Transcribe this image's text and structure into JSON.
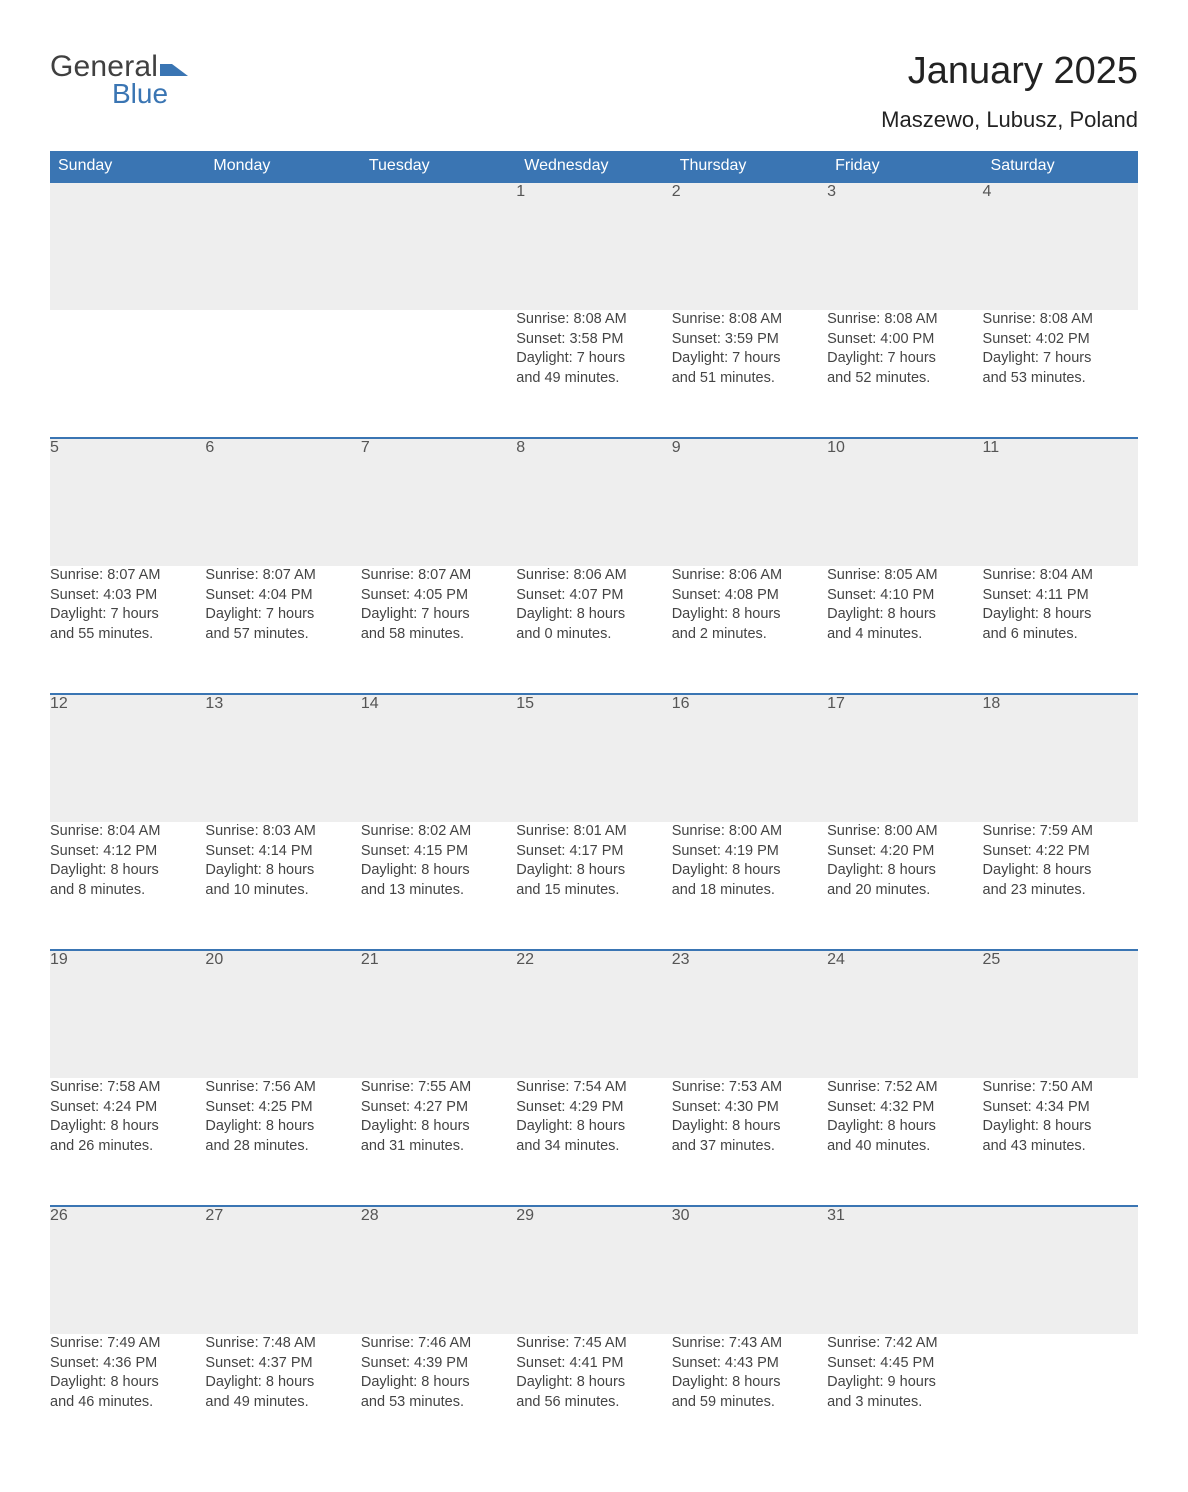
{
  "brand": {
    "part1": "General",
    "part2": "Blue",
    "mark_color": "#3a75b3"
  },
  "title": "January 2025",
  "location": "Maszewo, Lubusz, Poland",
  "colors": {
    "header_bg": "#3a75b3",
    "header_fg": "#ffffff",
    "daynum_bg": "#eeeeee",
    "row_border": "#3a75b3",
    "text": "#444444",
    "page_bg": "#ffffff"
  },
  "typography": {
    "title_fontsize": 38,
    "location_fontsize": 22,
    "header_fontsize": 16,
    "daynum_fontsize": 16,
    "body_fontsize": 14.5
  },
  "day_headers": [
    "Sunday",
    "Monday",
    "Tuesday",
    "Wednesday",
    "Thursday",
    "Friday",
    "Saturday"
  ],
  "weeks": [
    [
      null,
      null,
      null,
      {
        "n": "1",
        "sunrise": "Sunrise: 8:08 AM",
        "sunset": "Sunset: 3:58 PM",
        "d1": "Daylight: 7 hours",
        "d2": "and 49 minutes."
      },
      {
        "n": "2",
        "sunrise": "Sunrise: 8:08 AM",
        "sunset": "Sunset: 3:59 PM",
        "d1": "Daylight: 7 hours",
        "d2": "and 51 minutes."
      },
      {
        "n": "3",
        "sunrise": "Sunrise: 8:08 AM",
        "sunset": "Sunset: 4:00 PM",
        "d1": "Daylight: 7 hours",
        "d2": "and 52 minutes."
      },
      {
        "n": "4",
        "sunrise": "Sunrise: 8:08 AM",
        "sunset": "Sunset: 4:02 PM",
        "d1": "Daylight: 7 hours",
        "d2": "and 53 minutes."
      }
    ],
    [
      {
        "n": "5",
        "sunrise": "Sunrise: 8:07 AM",
        "sunset": "Sunset: 4:03 PM",
        "d1": "Daylight: 7 hours",
        "d2": "and 55 minutes."
      },
      {
        "n": "6",
        "sunrise": "Sunrise: 8:07 AM",
        "sunset": "Sunset: 4:04 PM",
        "d1": "Daylight: 7 hours",
        "d2": "and 57 minutes."
      },
      {
        "n": "7",
        "sunrise": "Sunrise: 8:07 AM",
        "sunset": "Sunset: 4:05 PM",
        "d1": "Daylight: 7 hours",
        "d2": "and 58 minutes."
      },
      {
        "n": "8",
        "sunrise": "Sunrise: 8:06 AM",
        "sunset": "Sunset: 4:07 PM",
        "d1": "Daylight: 8 hours",
        "d2": "and 0 minutes."
      },
      {
        "n": "9",
        "sunrise": "Sunrise: 8:06 AM",
        "sunset": "Sunset: 4:08 PM",
        "d1": "Daylight: 8 hours",
        "d2": "and 2 minutes."
      },
      {
        "n": "10",
        "sunrise": "Sunrise: 8:05 AM",
        "sunset": "Sunset: 4:10 PM",
        "d1": "Daylight: 8 hours",
        "d2": "and 4 minutes."
      },
      {
        "n": "11",
        "sunrise": "Sunrise: 8:04 AM",
        "sunset": "Sunset: 4:11 PM",
        "d1": "Daylight: 8 hours",
        "d2": "and 6 minutes."
      }
    ],
    [
      {
        "n": "12",
        "sunrise": "Sunrise: 8:04 AM",
        "sunset": "Sunset: 4:12 PM",
        "d1": "Daylight: 8 hours",
        "d2": "and 8 minutes."
      },
      {
        "n": "13",
        "sunrise": "Sunrise: 8:03 AM",
        "sunset": "Sunset: 4:14 PM",
        "d1": "Daylight: 8 hours",
        "d2": "and 10 minutes."
      },
      {
        "n": "14",
        "sunrise": "Sunrise: 8:02 AM",
        "sunset": "Sunset: 4:15 PM",
        "d1": "Daylight: 8 hours",
        "d2": "and 13 minutes."
      },
      {
        "n": "15",
        "sunrise": "Sunrise: 8:01 AM",
        "sunset": "Sunset: 4:17 PM",
        "d1": "Daylight: 8 hours",
        "d2": "and 15 minutes."
      },
      {
        "n": "16",
        "sunrise": "Sunrise: 8:00 AM",
        "sunset": "Sunset: 4:19 PM",
        "d1": "Daylight: 8 hours",
        "d2": "and 18 minutes."
      },
      {
        "n": "17",
        "sunrise": "Sunrise: 8:00 AM",
        "sunset": "Sunset: 4:20 PM",
        "d1": "Daylight: 8 hours",
        "d2": "and 20 minutes."
      },
      {
        "n": "18",
        "sunrise": "Sunrise: 7:59 AM",
        "sunset": "Sunset: 4:22 PM",
        "d1": "Daylight: 8 hours",
        "d2": "and 23 minutes."
      }
    ],
    [
      {
        "n": "19",
        "sunrise": "Sunrise: 7:58 AM",
        "sunset": "Sunset: 4:24 PM",
        "d1": "Daylight: 8 hours",
        "d2": "and 26 minutes."
      },
      {
        "n": "20",
        "sunrise": "Sunrise: 7:56 AM",
        "sunset": "Sunset: 4:25 PM",
        "d1": "Daylight: 8 hours",
        "d2": "and 28 minutes."
      },
      {
        "n": "21",
        "sunrise": "Sunrise: 7:55 AM",
        "sunset": "Sunset: 4:27 PM",
        "d1": "Daylight: 8 hours",
        "d2": "and 31 minutes."
      },
      {
        "n": "22",
        "sunrise": "Sunrise: 7:54 AM",
        "sunset": "Sunset: 4:29 PM",
        "d1": "Daylight: 8 hours",
        "d2": "and 34 minutes."
      },
      {
        "n": "23",
        "sunrise": "Sunrise: 7:53 AM",
        "sunset": "Sunset: 4:30 PM",
        "d1": "Daylight: 8 hours",
        "d2": "and 37 minutes."
      },
      {
        "n": "24",
        "sunrise": "Sunrise: 7:52 AM",
        "sunset": "Sunset: 4:32 PM",
        "d1": "Daylight: 8 hours",
        "d2": "and 40 minutes."
      },
      {
        "n": "25",
        "sunrise": "Sunrise: 7:50 AM",
        "sunset": "Sunset: 4:34 PM",
        "d1": "Daylight: 8 hours",
        "d2": "and 43 minutes."
      }
    ],
    [
      {
        "n": "26",
        "sunrise": "Sunrise: 7:49 AM",
        "sunset": "Sunset: 4:36 PM",
        "d1": "Daylight: 8 hours",
        "d2": "and 46 minutes."
      },
      {
        "n": "27",
        "sunrise": "Sunrise: 7:48 AM",
        "sunset": "Sunset: 4:37 PM",
        "d1": "Daylight: 8 hours",
        "d2": "and 49 minutes."
      },
      {
        "n": "28",
        "sunrise": "Sunrise: 7:46 AM",
        "sunset": "Sunset: 4:39 PM",
        "d1": "Daylight: 8 hours",
        "d2": "and 53 minutes."
      },
      {
        "n": "29",
        "sunrise": "Sunrise: 7:45 AM",
        "sunset": "Sunset: 4:41 PM",
        "d1": "Daylight: 8 hours",
        "d2": "and 56 minutes."
      },
      {
        "n": "30",
        "sunrise": "Sunrise: 7:43 AM",
        "sunset": "Sunset: 4:43 PM",
        "d1": "Daylight: 8 hours",
        "d2": "and 59 minutes."
      },
      {
        "n": "31",
        "sunrise": "Sunrise: 7:42 AM",
        "sunset": "Sunset: 4:45 PM",
        "d1": "Daylight: 9 hours",
        "d2": "and 3 minutes."
      },
      null
    ]
  ]
}
